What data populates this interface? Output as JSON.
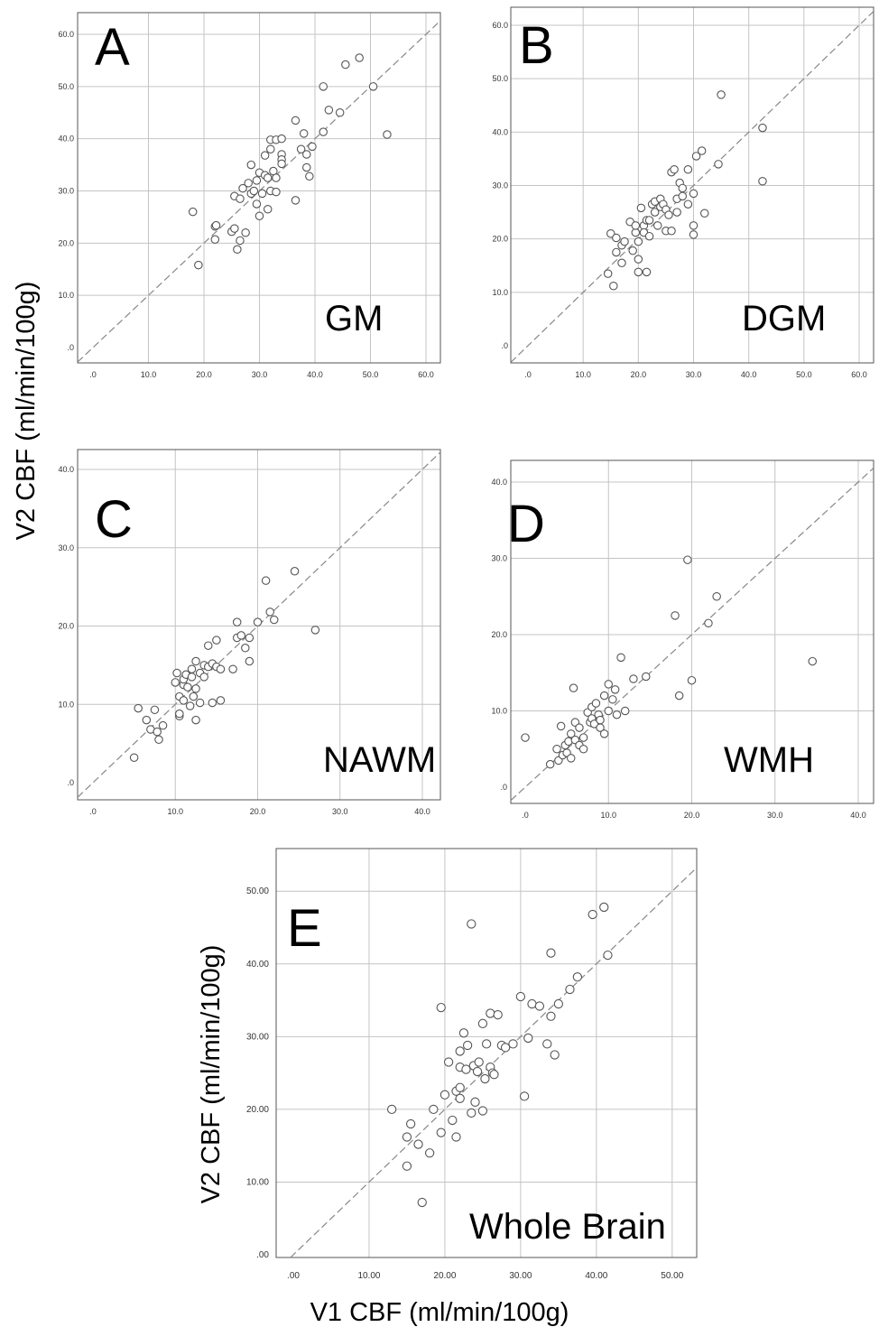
{
  "figure": {
    "shared_ylabel": "V2 CBF (ml/min/100g)",
    "shared_xlabel": "V1 CBF (ml/min/100g)"
  },
  "chart_data": [
    {
      "type": "scatter",
      "panel": "A",
      "region_label": "GM",
      "xlim": [
        0,
        60
      ],
      "ylim": [
        0,
        60
      ],
      "xticks": [
        ".0",
        "10.0",
        "20.0",
        "30.0",
        "40.0",
        "50.0",
        "60.0"
      ],
      "yticks": [
        ".0",
        "10.0",
        "20.0",
        "30.0",
        "40.0",
        "50.0",
        "60.0"
      ],
      "reference_line": "identity (y = x), dashed",
      "points": [
        [
          18,
          26
        ],
        [
          19,
          15.8
        ],
        [
          22,
          23.2
        ],
        [
          22.2,
          23.4
        ],
        [
          22,
          20.7
        ],
        [
          25,
          22.2
        ],
        [
          25.5,
          22.8
        ],
        [
          25.5,
          29
        ],
        [
          26,
          18.8
        ],
        [
          26.5,
          20.5
        ],
        [
          26.5,
          28.5
        ],
        [
          27,
          30.5
        ],
        [
          27.5,
          22
        ],
        [
          28,
          31.5
        ],
        [
          28.5,
          35
        ],
        [
          28.5,
          29.5
        ],
        [
          29,
          30
        ],
        [
          29.5,
          27.5
        ],
        [
          29.5,
          32
        ],
        [
          30,
          33.5
        ],
        [
          30,
          25.2
        ],
        [
          30.5,
          29.5
        ],
        [
          31,
          36.8
        ],
        [
          31,
          33
        ],
        [
          31.5,
          32.5
        ],
        [
          31.5,
          26.5
        ],
        [
          32,
          30
        ],
        [
          32,
          38
        ],
        [
          32,
          39.8
        ],
        [
          32.5,
          33.8
        ],
        [
          33,
          29.8
        ],
        [
          33,
          32.5
        ],
        [
          33,
          39.8
        ],
        [
          34,
          37
        ],
        [
          34,
          36
        ],
        [
          34,
          40
        ],
        [
          34,
          35.2
        ],
        [
          36.5,
          43.5
        ],
        [
          36.5,
          28.2
        ],
        [
          37.5,
          38
        ],
        [
          38,
          41
        ],
        [
          38.5,
          34.5
        ],
        [
          38.5,
          37
        ],
        [
          39,
          32.8
        ],
        [
          39.5,
          38.5
        ],
        [
          41.5,
          50
        ],
        [
          41.5,
          41.3
        ],
        [
          42.5,
          45.5
        ],
        [
          44.5,
          45
        ],
        [
          45.5,
          54.2
        ],
        [
          48,
          55.5
        ],
        [
          50.5,
          50
        ],
        [
          53,
          40.8
        ]
      ]
    },
    {
      "type": "scatter",
      "panel": "B",
      "region_label": "DGM",
      "xlim": [
        0,
        60
      ],
      "ylim": [
        0,
        60
      ],
      "xticks": [
        ".0",
        "10.0",
        "20.0",
        "30.0",
        "40.0",
        "50.0",
        "60.0"
      ],
      "yticks": [
        ".0",
        "10.0",
        "20.0",
        "30.0",
        "40.0",
        "50.0",
        "60.0"
      ],
      "reference_line": "identity (y = x), dashed",
      "points": [
        [
          14.5,
          13.5
        ],
        [
          15,
          21
        ],
        [
          15.5,
          11.2
        ],
        [
          16,
          17.5
        ],
        [
          16,
          20.2
        ],
        [
          17,
          15.5
        ],
        [
          17,
          18.8
        ],
        [
          17.5,
          19.5
        ],
        [
          18.5,
          23.2
        ],
        [
          19,
          17.8
        ],
        [
          19.5,
          21.2
        ],
        [
          19.5,
          22.5
        ],
        [
          20,
          16.2
        ],
        [
          20,
          13.8
        ],
        [
          20,
          19.5
        ],
        [
          20.5,
          25.8
        ],
        [
          21,
          22.5
        ],
        [
          21,
          21.2
        ],
        [
          21.5,
          23.5
        ],
        [
          21.5,
          13.8
        ],
        [
          22,
          20.5
        ],
        [
          22,
          23.5
        ],
        [
          22.5,
          26.5
        ],
        [
          23,
          25
        ],
        [
          23,
          27
        ],
        [
          23.5,
          22.5
        ],
        [
          24,
          26
        ],
        [
          24,
          27.5
        ],
        [
          24.5,
          26.5
        ],
        [
          25,
          21.5
        ],
        [
          25,
          25.5
        ],
        [
          25.5,
          24.5
        ],
        [
          26,
          21.5
        ],
        [
          26,
          32.5
        ],
        [
          26.5,
          33
        ],
        [
          27,
          27.5
        ],
        [
          27,
          25
        ],
        [
          27.5,
          30.5
        ],
        [
          28,
          28
        ],
        [
          28,
          29.5
        ],
        [
          29,
          33
        ],
        [
          29,
          26.5
        ],
        [
          30,
          22.5
        ],
        [
          30,
          20.8
        ],
        [
          30,
          28.5
        ],
        [
          30.5,
          35.5
        ],
        [
          31.5,
          36.5
        ],
        [
          32,
          24.8
        ],
        [
          34.5,
          34
        ],
        [
          35,
          47
        ],
        [
          42.5,
          40.8
        ],
        [
          42.5,
          30.8
        ]
      ]
    },
    {
      "type": "scatter",
      "panel": "C",
      "region_label": "NAWM",
      "xlim": [
        0,
        40
      ],
      "ylim": [
        0,
        40
      ],
      "xticks": [
        ".0",
        "10.0",
        "20.0",
        "30.0",
        "40.0"
      ],
      "yticks": [
        ".0",
        "10.0",
        "20.0",
        "30.0",
        "40.0"
      ],
      "reference_line": "identity (y = x), dashed",
      "points": [
        [
          5,
          3.2
        ],
        [
          5.5,
          9.5
        ],
        [
          6.5,
          8
        ],
        [
          7,
          6.8
        ],
        [
          7.5,
          9.3
        ],
        [
          7.8,
          6.5
        ],
        [
          8,
          5.5
        ],
        [
          8.5,
          7.3
        ],
        [
          10,
          12.8
        ],
        [
          10.2,
          14
        ],
        [
          10.5,
          11
        ],
        [
          11,
          12.5
        ],
        [
          11,
          13.2
        ],
        [
          11,
          10.5
        ],
        [
          11.3,
          13.8
        ],
        [
          11.5,
          12.2
        ],
        [
          11.8,
          9.8
        ],
        [
          12,
          13.5
        ],
        [
          12,
          14.5
        ],
        [
          12.2,
          11
        ],
        [
          12.5,
          15.5
        ],
        [
          12.5,
          12
        ],
        [
          13,
          14
        ],
        [
          13,
          10.2
        ],
        [
          13.5,
          13.5
        ],
        [
          13.5,
          15
        ],
        [
          14,
          14.8
        ],
        [
          14,
          17.5
        ],
        [
          14.5,
          10.2
        ],
        [
          14.5,
          15.2
        ],
        [
          15,
          14.8
        ],
        [
          15,
          18.2
        ],
        [
          15.5,
          10.5
        ],
        [
          15.5,
          14.5
        ],
        [
          12.5,
          8
        ],
        [
          10.5,
          8.5
        ],
        [
          10.5,
          8.8
        ],
        [
          17,
          14.5
        ],
        [
          17.5,
          18.5
        ],
        [
          17.5,
          20.5
        ],
        [
          18,
          18.8
        ],
        [
          18.5,
          17.2
        ],
        [
          19,
          15.5
        ],
        [
          19,
          18.5
        ],
        [
          20,
          20.5
        ],
        [
          21,
          25.8
        ],
        [
          21.5,
          21.8
        ],
        [
          22,
          20.8
        ],
        [
          24.5,
          27
        ],
        [
          27,
          19.5
        ]
      ]
    },
    {
      "type": "scatter",
      "panel": "D",
      "region_label": "WMH",
      "xlim": [
        0,
        40
      ],
      "ylim": [
        0,
        40
      ],
      "xticks": [
        ".0",
        "10.0",
        "20.0",
        "30.0",
        "40.0"
      ],
      "yticks": [
        ".0",
        "10.0",
        "20.0",
        "30.0",
        "40.0"
      ],
      "reference_line": "identity (y = x), dashed",
      "points": [
        [
          0,
          6.5
        ],
        [
          3,
          3
        ],
        [
          3.8,
          5
        ],
        [
          4,
          3.5
        ],
        [
          4.3,
          8
        ],
        [
          4.5,
          4.2
        ],
        [
          4.8,
          5.5
        ],
        [
          5,
          4.5
        ],
        [
          5.2,
          6
        ],
        [
          5.5,
          7
        ],
        [
          5.5,
          3.8
        ],
        [
          5.8,
          13
        ],
        [
          6,
          6.2
        ],
        [
          6,
          8.5
        ],
        [
          6.5,
          5.5
        ],
        [
          6.5,
          7.8
        ],
        [
          7,
          6.5
        ],
        [
          7,
          5
        ],
        [
          7.5,
          9.8
        ],
        [
          7.8,
          8.5
        ],
        [
          8,
          10.5
        ],
        [
          8,
          9
        ],
        [
          8.3,
          8.3
        ],
        [
          8.5,
          11
        ],
        [
          8.8,
          9.5
        ],
        [
          9,
          7.8
        ],
        [
          9,
          8.8
        ],
        [
          9.5,
          12
        ],
        [
          9.5,
          7
        ],
        [
          10,
          13.5
        ],
        [
          10,
          10
        ],
        [
          10.5,
          11.5
        ],
        [
          10.8,
          12.8
        ],
        [
          11,
          9.5
        ],
        [
          11.5,
          17
        ],
        [
          12,
          10
        ],
        [
          13,
          14.2
        ],
        [
          14.5,
          14.5
        ],
        [
          18,
          22.5
        ],
        [
          18.5,
          12
        ],
        [
          19.5,
          29.8
        ],
        [
          20,
          14
        ],
        [
          22,
          21.5
        ],
        [
          23,
          25
        ],
        [
          34.5,
          16.5
        ]
      ]
    },
    {
      "type": "scatter",
      "panel": "E",
      "region_label": "Whole Brain",
      "xlabel": "V1 CBF (ml/min/100g)",
      "ylabel": "V2 CBF (ml/min/100g)",
      "xlim": [
        0,
        53
      ],
      "ylim": [
        0,
        54
      ],
      "xticks": [
        ".00",
        "10.00",
        "20.00",
        "30.00",
        "40.00",
        "50.00"
      ],
      "yticks": [
        ".00",
        "10.00",
        "20.00",
        "30.00",
        "40.00",
        "50.00"
      ],
      "reference_line": "identity (y = x), dashed",
      "points": [
        [
          13,
          20
        ],
        [
          15,
          12.2
        ],
        [
          15,
          16.2
        ],
        [
          15.5,
          18
        ],
        [
          16.5,
          15.2
        ],
        [
          17,
          7.2
        ],
        [
          18,
          14
        ],
        [
          18.5,
          20
        ],
        [
          19.5,
          16.8
        ],
        [
          19.5,
          34
        ],
        [
          20,
          22
        ],
        [
          20.5,
          26.5
        ],
        [
          21,
          18.5
        ],
        [
          21.5,
          16.2
        ],
        [
          21.5,
          22.5
        ],
        [
          22,
          21.5
        ],
        [
          22,
          23
        ],
        [
          22,
          25.8
        ],
        [
          22,
          28
        ],
        [
          22.5,
          30.5
        ],
        [
          22.8,
          25.5
        ],
        [
          23,
          28.8
        ],
        [
          23.5,
          19.5
        ],
        [
          23.5,
          45.5
        ],
        [
          23.8,
          26
        ],
        [
          24,
          21
        ],
        [
          24.3,
          25.2
        ],
        [
          24.5,
          26.5
        ],
        [
          25,
          19.8
        ],
        [
          25,
          31.8
        ],
        [
          25.3,
          24.2
        ],
        [
          25.5,
          29
        ],
        [
          26,
          25.8
        ],
        [
          26,
          33.2
        ],
        [
          26.3,
          25
        ],
        [
          26.5,
          24.8
        ],
        [
          27,
          33
        ],
        [
          27.5,
          28.8
        ],
        [
          28,
          28.5
        ],
        [
          29,
          29
        ],
        [
          30,
          35.5
        ],
        [
          30.5,
          21.8
        ],
        [
          31,
          29.8
        ],
        [
          31.5,
          34.5
        ],
        [
          32.5,
          34.2
        ],
        [
          33.5,
          29
        ],
        [
          34,
          41.5
        ],
        [
          34,
          32.8
        ],
        [
          34.5,
          27.5
        ],
        [
          35,
          34.5
        ],
        [
          36.5,
          36.5
        ],
        [
          37.5,
          38.2
        ],
        [
          39.5,
          46.8
        ],
        [
          41,
          47.8
        ],
        [
          41.5,
          41.2
        ]
      ]
    }
  ]
}
